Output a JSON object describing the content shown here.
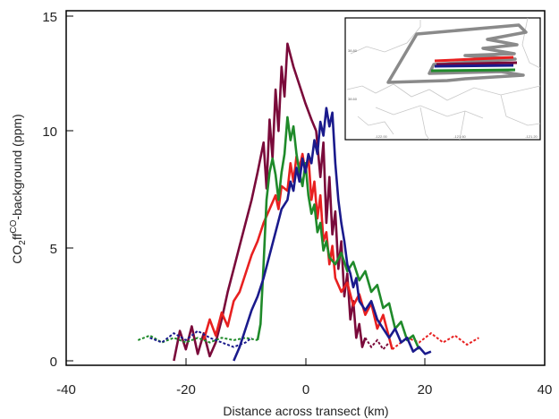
{
  "chart_data": {
    "type": "line",
    "title": "",
    "xlabel": "Distance across transect (km)",
    "ylabel": {
      "base": "CO",
      "sub": "2",
      "mid": "ff",
      "sup": "CO",
      "rest": "-background (ppm)"
    },
    "xlim": [
      -40,
      40
    ],
    "ylim": [
      -0.2,
      15
    ],
    "x_ticks": [
      "-40",
      "-20",
      "0",
      "20",
      "40"
    ],
    "x_tick_values": [
      -40,
      -20,
      0,
      20,
      40
    ],
    "y_ticks": [
      "0",
      "5",
      "10",
      "15"
    ],
    "y_tick_values": [
      0,
      5,
      10,
      15
    ],
    "grid": false,
    "series": [
      {
        "color": "#7a0a3a",
        "solid": [
          [
            -22,
            0
          ],
          [
            -21,
            1.3
          ],
          [
            -20,
            0.5
          ],
          [
            -19,
            1.5
          ],
          [
            -18,
            0.3
          ],
          [
            -17,
            1.2
          ],
          [
            -16,
            0.2
          ],
          [
            -15,
            0.8
          ],
          [
            -14,
            1.8
          ],
          [
            -13,
            3.0
          ],
          [
            -12,
            4.0
          ],
          [
            -11,
            5.0
          ],
          [
            -10,
            6.0
          ],
          [
            -9,
            7.0
          ],
          [
            -8,
            8.2
          ],
          [
            -7,
            9.5
          ],
          [
            -6.5,
            7.5
          ],
          [
            -6,
            10.5
          ],
          [
            -5.5,
            8.8
          ],
          [
            -5,
            11.8
          ],
          [
            -4.5,
            10.0
          ],
          [
            -4,
            12.8
          ],
          [
            -3.5,
            11.5
          ],
          [
            -3,
            13.8
          ],
          [
            -2,
            12.8
          ],
          [
            -1,
            12.0
          ],
          [
            0,
            11.2
          ],
          [
            1,
            10.5
          ],
          [
            1.8,
            10.0
          ],
          [
            2.5,
            8.0
          ],
          [
            3,
            9.5
          ],
          [
            3.5,
            6.0
          ],
          [
            4,
            8.0
          ],
          [
            4.5,
            5.5
          ],
          [
            5,
            6.5
          ],
          [
            5.5,
            4.0
          ],
          [
            6,
            5.2
          ],
          [
            6.5,
            2.8
          ],
          [
            7,
            3.8
          ],
          [
            7.5,
            1.8
          ],
          [
            8,
            2.6
          ],
          [
            8.5,
            1.0
          ],
          [
            9,
            1.6
          ],
          [
            9.5,
            0.6
          ],
          [
            10,
            1.0
          ]
        ],
        "dashed": [
          [
            10,
            1.0
          ],
          [
            11,
            0.6
          ],
          [
            12,
            0.9
          ],
          [
            13,
            0.5
          ],
          [
            14,
            0.8
          ]
        ]
      },
      {
        "color": "#e82020",
        "solid": [
          [
            -17,
            0.9
          ],
          [
            -16,
            1.8
          ],
          [
            -15,
            1.1
          ],
          [
            -14,
            2.1
          ],
          [
            -13,
            1.5
          ],
          [
            -12,
            2.6
          ],
          [
            -11,
            3.0
          ],
          [
            -10,
            3.8
          ],
          [
            -9,
            4.6
          ],
          [
            -8,
            5.2
          ],
          [
            -7,
            6.0
          ],
          [
            -6,
            6.6
          ],
          [
            -5,
            7.2
          ],
          [
            -4.5,
            6.6
          ],
          [
            -4,
            7.6
          ],
          [
            -3,
            7.4
          ],
          [
            -2.5,
            8.6
          ],
          [
            -2,
            7.8
          ],
          [
            -1.5,
            8.9
          ],
          [
            -1,
            8.4
          ],
          [
            -0.5,
            9.0
          ],
          [
            0,
            8.2
          ],
          [
            0.5,
            8.9
          ],
          [
            1,
            7.0
          ],
          [
            1.5,
            7.8
          ],
          [
            2,
            6.2
          ],
          [
            2.5,
            7.2
          ],
          [
            3,
            5.2
          ],
          [
            3.5,
            5.6
          ],
          [
            4,
            4.2
          ],
          [
            4.5,
            5.0
          ],
          [
            5,
            3.6
          ],
          [
            6,
            3.0
          ],
          [
            7,
            3.4
          ],
          [
            8,
            2.4
          ],
          [
            9,
            2.9
          ],
          [
            10,
            2.0
          ],
          [
            11,
            2.5
          ],
          [
            12,
            1.4
          ],
          [
            13,
            2.0
          ],
          [
            14,
            1.0
          ],
          [
            14.5,
            0.5
          ]
        ],
        "dashed": [
          [
            14.5,
            0.5
          ],
          [
            17,
            1.0
          ],
          [
            19,
            0.8
          ],
          [
            21,
            1.2
          ],
          [
            23,
            0.8
          ],
          [
            25,
            1.1
          ],
          [
            27,
            0.7
          ],
          [
            29,
            1.0
          ]
        ]
      },
      {
        "color": "#1f8a2a",
        "solid": [
          [
            -8,
            0.9
          ],
          [
            -7.5,
            1.6
          ],
          [
            -7,
            4.2
          ],
          [
            -6.5,
            7.0
          ],
          [
            -6,
            8.2
          ],
          [
            -5.5,
            8.8
          ],
          [
            -5,
            8.1
          ],
          [
            -4.5,
            7.0
          ],
          [
            -4,
            8.2
          ],
          [
            -3.5,
            9.0
          ],
          [
            -3,
            10.6
          ],
          [
            -2.5,
            9.6
          ],
          [
            -2,
            10.2
          ],
          [
            -1.5,
            9.0
          ],
          [
            -1,
            8.2
          ],
          [
            -0.5,
            7.6
          ],
          [
            0,
            8.6
          ],
          [
            0.5,
            7.2
          ],
          [
            1,
            6.4
          ],
          [
            1.5,
            6.8
          ],
          [
            2,
            5.6
          ],
          [
            2.5,
            6.0
          ],
          [
            3,
            4.8
          ],
          [
            3.5,
            5.2
          ],
          [
            4,
            4.5
          ],
          [
            5,
            4.2
          ],
          [
            6,
            4.7
          ],
          [
            7,
            3.9
          ],
          [
            8,
            4.3
          ],
          [
            9,
            3.5
          ],
          [
            10,
            3.9
          ],
          [
            11,
            3.0
          ],
          [
            12,
            3.3
          ],
          [
            13,
            2.3
          ],
          [
            14,
            2.5
          ],
          [
            15,
            1.4
          ],
          [
            16,
            1.7
          ],
          [
            17,
            0.9
          ],
          [
            18,
            1.1
          ],
          [
            19,
            0.5
          ]
        ],
        "dashed": [
          [
            -28,
            0.9
          ],
          [
            -26,
            1.1
          ],
          [
            -24,
            0.8
          ],
          [
            -22,
            1.0
          ],
          [
            -20,
            0.8
          ],
          [
            -18,
            1.0
          ],
          [
            -16,
            0.8
          ],
          [
            -14,
            1.0
          ],
          [
            -12,
            0.9
          ],
          [
            -10,
            1.0
          ],
          [
            -8,
            0.9
          ]
        ]
      },
      {
        "color": "#1a1a8c",
        "solid": [
          [
            -12,
            0
          ],
          [
            -11,
            0.6
          ],
          [
            -10,
            1.4
          ],
          [
            -9,
            2.2
          ],
          [
            -8,
            2.8
          ],
          [
            -7,
            3.6
          ],
          [
            -6,
            4.6
          ],
          [
            -5,
            5.6
          ],
          [
            -4,
            6.6
          ],
          [
            -3,
            7.0
          ],
          [
            -2.5,
            7.8
          ],
          [
            -2,
            7.4
          ],
          [
            -1.5,
            8.4
          ],
          [
            -1,
            7.8
          ],
          [
            -0.5,
            8.8
          ],
          [
            0,
            8.2
          ],
          [
            0.5,
            9.0
          ],
          [
            1,
            8.6
          ],
          [
            1.5,
            9.6
          ],
          [
            2,
            9.0
          ],
          [
            2.5,
            10.4
          ],
          [
            3,
            9.8
          ],
          [
            3.5,
            11.0
          ],
          [
            4,
            10.2
          ],
          [
            4.5,
            10.8
          ],
          [
            5,
            8.6
          ],
          [
            5.5,
            7.0
          ],
          [
            6,
            6.0
          ],
          [
            6.5,
            5.2
          ],
          [
            7,
            4.2
          ],
          [
            7.5,
            3.8
          ],
          [
            8,
            3.2
          ],
          [
            8.5,
            3.6
          ],
          [
            9,
            2.6
          ],
          [
            10,
            2.2
          ],
          [
            11,
            2.6
          ],
          [
            12,
            1.8
          ],
          [
            13,
            1.4
          ],
          [
            14,
            1.0
          ],
          [
            15,
            1.4
          ],
          [
            16,
            0.8
          ],
          [
            17,
            1.0
          ],
          [
            18,
            0.4
          ],
          [
            19,
            0.6
          ],
          [
            20,
            0.3
          ],
          [
            21,
            0.4
          ]
        ],
        "dashed": [
          [
            -26,
            1.0
          ],
          [
            -24,
            0.8
          ],
          [
            -22,
            1.2
          ],
          [
            -20,
            0.9
          ],
          [
            -18,
            1.3
          ],
          [
            -16,
            1.0
          ],
          [
            -14,
            0.8
          ],
          [
            -12,
            0.6
          ],
          [
            -10,
            0.8
          ],
          [
            -9,
            1.0
          ]
        ]
      }
    ]
  },
  "inset": {
    "labels": [
      "38.80",
      "38.60",
      "-122.00",
      "-121.60",
      "-121.20"
    ]
  }
}
